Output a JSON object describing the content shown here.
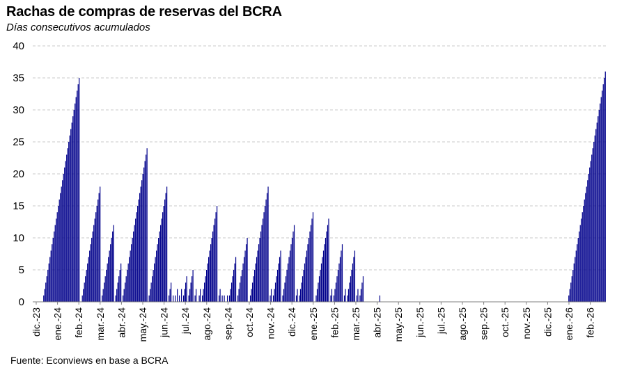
{
  "chart_data": {
    "type": "bar",
    "title": "Rachas de compras de reservas del BCRA",
    "subtitle": "Días consecutivos acumulados",
    "source": "Fuente: Econviews en base a BCRA",
    "ylim": [
      0,
      40
    ],
    "yticks": [
      0,
      5,
      10,
      15,
      20,
      25,
      30,
      35,
      40
    ],
    "grid": "horizontal-dashed",
    "bar_color": "#00008B",
    "x_tick_labels": [
      "dic.-23",
      "ene.-24",
      "feb.-24",
      "mar.-24",
      "abr.-24",
      "may.-24",
      "jun.-24",
      "jul.-24",
      "ago.-24",
      "sep.-24",
      "oct.-24",
      "nov.-24",
      "dic.-24",
      "ene.-25",
      "feb.-25",
      "mar.-25",
      "abr.-25",
      "may.-25",
      "jun.-25",
      "jul.-25",
      "ago.-25",
      "sep.-25",
      "oct.-25",
      "nov.-25",
      "dic.-25",
      "ene.-26",
      "feb.-26"
    ],
    "values": [
      0,
      0,
      0,
      0,
      0,
      0,
      0,
      0,
      0,
      0,
      1,
      2,
      3,
      4,
      5,
      6,
      7,
      8,
      9,
      10,
      11,
      12,
      13,
      14,
      15,
      16,
      17,
      18,
      19,
      20,
      21,
      22,
      23,
      24,
      25,
      26,
      27,
      28,
      29,
      30,
      31,
      32,
      33,
      34,
      35,
      0,
      0,
      1,
      2,
      3,
      4,
      5,
      6,
      7,
      8,
      9,
      10,
      11,
      12,
      13,
      14,
      15,
      16,
      17,
      18,
      0,
      1,
      2,
      3,
      4,
      5,
      6,
      7,
      8,
      9,
      10,
      11,
      12,
      0,
      1,
      2,
      3,
      4,
      5,
      6,
      0,
      1,
      2,
      3,
      4,
      5,
      6,
      7,
      8,
      9,
      10,
      11,
      12,
      13,
      14,
      15,
      16,
      17,
      18,
      19,
      20,
      21,
      22,
      23,
      24,
      0,
      1,
      2,
      3,
      4,
      5,
      6,
      7,
      8,
      9,
      10,
      11,
      12,
      13,
      14,
      15,
      16,
      17,
      18,
      0,
      1,
      2,
      3,
      0,
      1,
      0,
      1,
      0,
      2,
      0,
      1,
      0,
      2,
      0,
      1,
      2,
      3,
      4,
      0,
      1,
      2,
      3,
      4,
      5,
      0,
      1,
      2,
      0,
      0,
      1,
      2,
      0,
      1,
      2,
      3,
      4,
      5,
      6,
      7,
      8,
      9,
      10,
      11,
      12,
      13,
      14,
      15,
      0,
      1,
      2,
      0,
      1,
      0,
      1,
      0,
      0,
      1,
      0,
      1,
      2,
      3,
      4,
      5,
      6,
      7,
      0,
      1,
      2,
      3,
      4,
      5,
      6,
      7,
      8,
      9,
      10,
      0,
      0,
      1,
      2,
      3,
      4,
      5,
      6,
      7,
      8,
      9,
      10,
      11,
      12,
      13,
      14,
      15,
      16,
      17,
      18,
      0,
      1,
      2,
      0,
      1,
      2,
      3,
      4,
      5,
      6,
      7,
      8,
      0,
      1,
      2,
      3,
      4,
      5,
      6,
      7,
      8,
      9,
      10,
      11,
      12,
      0,
      1,
      2,
      0,
      1,
      2,
      3,
      4,
      5,
      6,
      7,
      8,
      9,
      10,
      11,
      12,
      13,
      14,
      0,
      0,
      1,
      2,
      3,
      4,
      5,
      6,
      7,
      8,
      9,
      10,
      11,
      12,
      13,
      0,
      1,
      2,
      0,
      1,
      2,
      3,
      4,
      5,
      6,
      7,
      8,
      9,
      0,
      1,
      2,
      0,
      1,
      2,
      3,
      4,
      5,
      6,
      7,
      8,
      0,
      1,
      2,
      0,
      1,
      2,
      3,
      4,
      0,
      0,
      0,
      0,
      0,
      0,
      0,
      0,
      0,
      0,
      0,
      0,
      0,
      0,
      0,
      1,
      0,
      0,
      0,
      0,
      0,
      0,
      0,
      0,
      0,
      0,
      0,
      0,
      0,
      0,
      0,
      0,
      0,
      0,
      0,
      0,
      0,
      0,
      0,
      0,
      0,
      0,
      0,
      0,
      0,
      0,
      0,
      0,
      0,
      0,
      0,
      0,
      0,
      0,
      0,
      0,
      0,
      0,
      0,
      0,
      0,
      0,
      0,
      0,
      0,
      0,
      0,
      0,
      0,
      0,
      0,
      0,
      0,
      0,
      0,
      0,
      0,
      0,
      0,
      0,
      0,
      0,
      0,
      0,
      0,
      0,
      0,
      0,
      0,
      0,
      0,
      0,
      0,
      0,
      0,
      0,
      0,
      0,
      0,
      0,
      0,
      0,
      0,
      0,
      0,
      0,
      0,
      0,
      0,
      0,
      0,
      0,
      0,
      0,
      0,
      0,
      0,
      0,
      0,
      0,
      0,
      0,
      0,
      0,
      0,
      0,
      0,
      0,
      0,
      0,
      0,
      0,
      0,
      0,
      0,
      0,
      0,
      0,
      0,
      0,
      0,
      0,
      0,
      0,
      0,
      0,
      0,
      0,
      0,
      0,
      0,
      0,
      0,
      0,
      0,
      0,
      0,
      0,
      0,
      0,
      0,
      0,
      0,
      0,
      0,
      0,
      0,
      0,
      0,
      0,
      0,
      0,
      0,
      0,
      0,
      0,
      0,
      0,
      0,
      0,
      0,
      0,
      0,
      0,
      0,
      0,
      0,
      0,
      0,
      0,
      0,
      0,
      0,
      0,
      0,
      0,
      1,
      2,
      3,
      4,
      5,
      6,
      7,
      8,
      9,
      10,
      11,
      12,
      13,
      14,
      15,
      16,
      17,
      18,
      19,
      20,
      21,
      22,
      23,
      24,
      25,
      26,
      27,
      28,
      29,
      30,
      31,
      32,
      33,
      34,
      35,
      36
    ]
  }
}
